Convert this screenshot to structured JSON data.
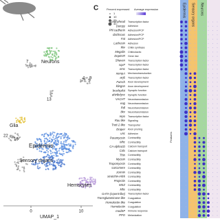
{
  "umap": {
    "clusters": [
      "Neurons",
      "7",
      "4",
      "9",
      "13",
      "Glia",
      "22",
      "16",
      "Epidermis",
      "Sensory organs",
      "Hemocytes"
    ],
    "x_label": "UMAP_1",
    "x_ticks": [
      "0",
      "10"
    ]
  },
  "dotplot": {
    "panel": "C",
    "legend_percent": "Percent expressed",
    "legend_percent_sizes": [
      "1",
      "10",
      "20",
      "40"
    ],
    "legend_avg": "Average expression",
    "y_label": "Features",
    "columns": [
      "Epidermis",
      "Sensory organs",
      "Neurons"
    ],
    "genes": [
      "Grainyhead",
      "Dumpy",
      "Phl cadherin",
      "dachsous",
      "Fat",
      "Lachesin",
      "kkv",
      "Megalin",
      "DopEcR",
      "Shaven",
      "sqxF",
      "emc",
      "nompA",
      "acj6",
      "Futsch",
      "klingon",
      "bruchpilot",
      "ahirtbdysc",
      "VACHT",
      "eag",
      "Rdl",
      "bkv",
      "repo",
      "Rau like",
      "Trett-2-like",
      "Draper",
      "unc",
      "Paramyosin",
      "Mhc",
      "CA-alpha1D",
      "Calx",
      "Thin",
      "Myosin",
      "Tropomyosin",
      "sarcomere",
      "zormin",
      "stretchin-mlck",
      "Projectin",
      "MSZ",
      "Mlic",
      "GATA (srpent-like)",
      "Transglutaminase-like",
      "Hemolectin-like",
      "Hemolectin",
      "modSP",
      "PPO"
    ],
    "functions": [
      "Transcription factor",
      "Adhesion",
      "Adhesion/PCP",
      "Adhesion/PCP",
      "Adhesion/PCP",
      "Adhesion",
      "Chitin synthase",
      "Chitinolactic",
      "Gene rise",
      "Transcription factor",
      "Transcription factor",
      "Transcription factor",
      "Mechanotransduction",
      "Transcription factor",
      "Axon development",
      "Axon development",
      "Synaptic function",
      "Synaptic function",
      "Neurotransmission",
      "Neurotransmission",
      "Neurotransmission",
      "Neurotransmission",
      "Transcription factor",
      "Signaling",
      "Transporter",
      "Axon pruning",
      "Adhesion",
      "Contractility",
      "Contractility",
      "Calcium transport",
      "Calcium transport",
      "Contractility",
      "Contractility",
      "Contractility",
      "Contractility",
      "Contractility",
      "Contractility",
      "Contractility",
      "Contractility",
      "Contractility",
      "Transcription factor",
      "Coagulation",
      "Coagulation",
      "Coagulation",
      "Immune response",
      "Melanization"
    ]
  }
}
